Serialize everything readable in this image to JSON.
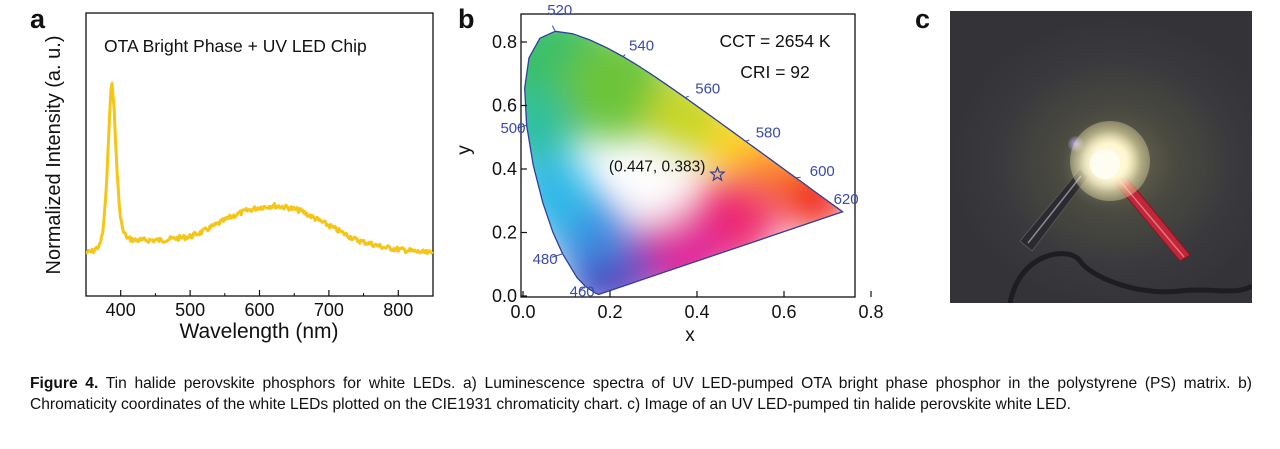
{
  "panels": {
    "a": "a",
    "b": "b",
    "c": "c"
  },
  "chart_data": [
    {
      "type": "line",
      "panel": "a",
      "annotations": [
        "OTA Bright Phase + UV LED Chip"
      ],
      "xlabel": "Wavelength (nm)",
      "ylabel": "Normalized Intensity (a. u.)",
      "xlim": [
        350,
        850
      ],
      "x_ticks": [
        "400",
        "500",
        "600",
        "700",
        "800"
      ],
      "y_ticks": [],
      "series": [
        {
          "color": "#f5c518",
          "x": [
            350,
            360,
            370,
            375,
            380,
            384,
            387,
            390,
            394,
            398,
            403,
            410,
            420,
            440,
            460,
            480,
            500,
            520,
            540,
            560,
            580,
            600,
            620,
            640,
            660,
            680,
            700,
            720,
            740,
            760,
            780,
            800,
            820,
            840,
            850
          ],
          "y": [
            0.05,
            0.06,
            0.09,
            0.18,
            0.45,
            0.82,
            1.0,
            0.88,
            0.55,
            0.3,
            0.17,
            0.13,
            0.12,
            0.12,
            0.12,
            0.13,
            0.14,
            0.17,
            0.21,
            0.25,
            0.28,
            0.3,
            0.31,
            0.3,
            0.28,
            0.24,
            0.2,
            0.16,
            0.12,
            0.1,
            0.08,
            0.07,
            0.06,
            0.05,
            0.05
          ]
        }
      ]
    },
    {
      "type": "scatter",
      "panel": "b",
      "xlabel": "x",
      "ylabel": "y",
      "xlim": [
        0.0,
        0.8
      ],
      "ylim": [
        0.0,
        0.85
      ],
      "x_ticks": [
        "0.0",
        "0.2",
        "0.4",
        "0.6",
        "0.8"
      ],
      "y_ticks": [
        "0.0",
        "0.2",
        "0.4",
        "0.6",
        "0.8"
      ],
      "annotations": [
        "CCT = 2654 K",
        "CRI = 92"
      ],
      "point_label": "(0.447, 0.383)",
      "points": [
        {
          "x": 0.447,
          "y": 0.383
        }
      ],
      "wavelength_labels": [
        {
          "label": "520",
          "x": 0.074,
          "y": 0.834
        },
        {
          "label": "540",
          "x": 0.23,
          "y": 0.754
        },
        {
          "label": "560",
          "x": 0.373,
          "y": 0.625
        },
        {
          "label": "580",
          "x": 0.512,
          "y": 0.487
        },
        {
          "label": "600",
          "x": 0.627,
          "y": 0.372
        },
        {
          "label": "620",
          "x": 0.691,
          "y": 0.308
        },
        {
          "label": "500",
          "x": 0.008,
          "y": 0.538
        },
        {
          "label": "480",
          "x": 0.091,
          "y": 0.133
        },
        {
          "label": "460",
          "x": 0.144,
          "y": 0.03
        }
      ],
      "locus": [
        [
          0.1741,
          0.005
        ],
        [
          0.1666,
          0.0089
        ],
        [
          0.144,
          0.0297
        ],
        [
          0.1241,
          0.0578
        ],
        [
          0.0913,
          0.1327
        ],
        [
          0.0687,
          0.2007
        ],
        [
          0.0454,
          0.295
        ],
        [
          0.0235,
          0.4127
        ],
        [
          0.0082,
          0.5384
        ],
        [
          0.0039,
          0.6548
        ],
        [
          0.0139,
          0.7502
        ],
        [
          0.0389,
          0.812
        ],
        [
          0.0743,
          0.8338
        ],
        [
          0.1142,
          0.8262
        ],
        [
          0.1547,
          0.8059
        ],
        [
          0.1929,
          0.7816
        ],
        [
          0.2296,
          0.7543
        ],
        [
          0.2658,
          0.7243
        ],
        [
          0.3016,
          0.6923
        ],
        [
          0.3373,
          0.6589
        ],
        [
          0.3731,
          0.6245
        ],
        [
          0.4087,
          0.5896
        ],
        [
          0.4441,
          0.5547
        ],
        [
          0.4788,
          0.5202
        ],
        [
          0.5125,
          0.4866
        ],
        [
          0.5448,
          0.4544
        ],
        [
          0.5752,
          0.4242
        ],
        [
          0.6029,
          0.3965
        ],
        [
          0.627,
          0.3725
        ],
        [
          0.6482,
          0.3514
        ],
        [
          0.6658,
          0.334
        ],
        [
          0.6915,
          0.3083
        ],
        [
          0.7079,
          0.292
        ],
        [
          0.719,
          0.2809
        ],
        [
          0.7347,
          0.2653
        ]
      ]
    }
  ],
  "photo": {
    "description_icon": "led-photo"
  },
  "caption": {
    "label": "Figure 4.",
    "text": "Tin halide perovskite phosphors for white LEDs. a) Luminescence spectra of UV LED-pumped OTA bright phase phosphor in the polystyrene (PS) matrix. b) Chromaticity coordinates of the white LEDs plotted on the CIE1931 chromaticity chart. c) Image of an UV LED-pumped tin halide perovskite white LED."
  }
}
